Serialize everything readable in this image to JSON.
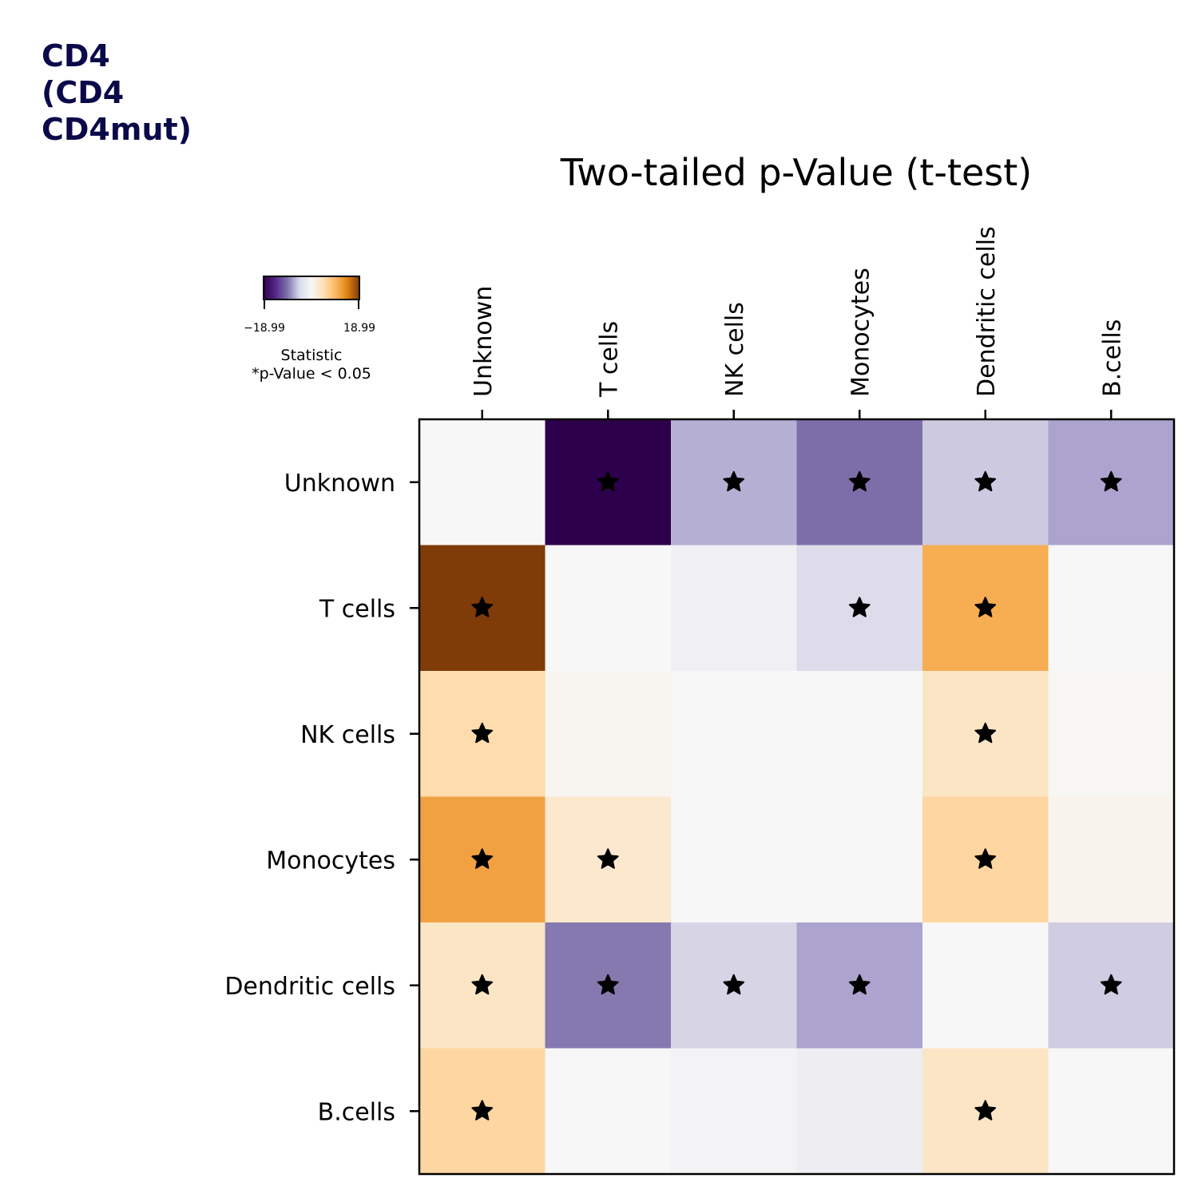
{
  "corner_label": [
    "CD4",
    "(CD4",
    "CD4mut)"
  ],
  "colors": {
    "corner_text": "#0a0a4a",
    "marker": "#000000"
  },
  "colorbar": {
    "min_label": "−18.99",
    "max_label": "18.99",
    "label_line1": "Statistic",
    "label_line2": "*p-Value < 0.05",
    "colormap": "PuOr_r"
  },
  "chart_data": {
    "type": "heatmap",
    "title": "Two-tailed p-Value (t-test)",
    "columns": [
      "Unknown",
      "T cells",
      "NK cells",
      "Monocytes",
      "Dendritic cells",
      "B.cells"
    ],
    "rows": [
      "Unknown",
      "T cells",
      "NK cells",
      "Monocytes",
      "Dendritic cells",
      "B.cells"
    ],
    "value_range": [
      -18.99,
      18.99
    ],
    "values": [
      [
        0,
        -18.99,
        -4.5,
        -9.8,
        -2.9,
        -5.3
      ],
      [
        18.99,
        0,
        -0.5,
        -1.7,
        10.5,
        0
      ],
      [
        5.2,
        0.6,
        0,
        0,
        3.7,
        0.3
      ],
      [
        11.5,
        3.1,
        0,
        0,
        5.9,
        0.7
      ],
      [
        3.7,
        -9.0,
        -2.2,
        -5.3,
        0,
        -2.7
      ],
      [
        5.9,
        0,
        -0.3,
        -0.6,
        3.7,
        0
      ]
    ],
    "significant": [
      [
        false,
        true,
        true,
        true,
        true,
        true
      ],
      [
        true,
        false,
        false,
        true,
        true,
        false
      ],
      [
        true,
        false,
        false,
        false,
        true,
        false
      ],
      [
        true,
        true,
        false,
        false,
        true,
        false
      ],
      [
        true,
        true,
        true,
        true,
        false,
        true
      ],
      [
        true,
        false,
        false,
        false,
        true,
        false
      ]
    ],
    "marker": "star"
  }
}
